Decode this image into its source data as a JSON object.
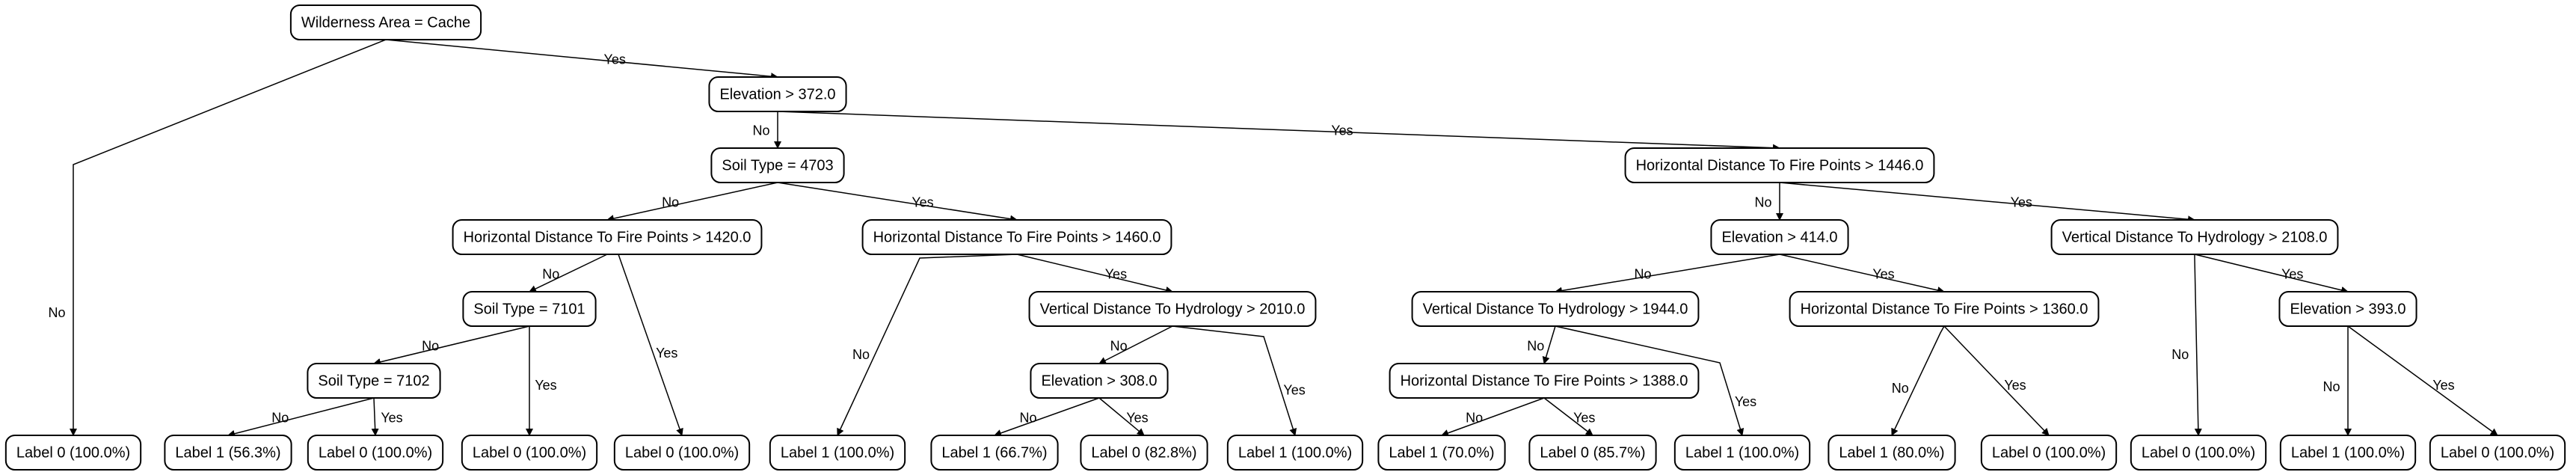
{
  "tree": {
    "nodes": [
      {
        "id": "n0",
        "label": "Wilderness Area = Cache",
        "kind": "decision"
      },
      {
        "id": "n1",
        "label": "Elevation > 372.0",
        "kind": "decision"
      },
      {
        "id": "n2",
        "label": "Soil Type = 4703",
        "kind": "decision"
      },
      {
        "id": "n3",
        "label": "Horizontal Distance To Fire Points > 1446.0",
        "kind": "decision"
      },
      {
        "id": "n4",
        "label": "Horizontal Distance To Fire Points > 1420.0",
        "kind": "decision"
      },
      {
        "id": "n5",
        "label": "Horizontal Distance To Fire Points > 1460.0",
        "kind": "decision"
      },
      {
        "id": "n6",
        "label": "Elevation > 414.0",
        "kind": "decision"
      },
      {
        "id": "n7",
        "label": "Vertical Distance To Hydrology > 2108.0",
        "kind": "decision"
      },
      {
        "id": "n8",
        "label": "Soil Type = 7101",
        "kind": "decision"
      },
      {
        "id": "n9",
        "label": "Vertical Distance To Hydrology > 2010.0",
        "kind": "decision"
      },
      {
        "id": "n10",
        "label": "Vertical Distance To Hydrology > 1944.0",
        "kind": "decision"
      },
      {
        "id": "n11",
        "label": "Horizontal Distance To Fire Points > 1360.0",
        "kind": "decision"
      },
      {
        "id": "n12",
        "label": "Elevation > 393.0",
        "kind": "decision"
      },
      {
        "id": "n13",
        "label": "Soil Type = 7102",
        "kind": "decision"
      },
      {
        "id": "n14",
        "label": "Elevation > 308.0",
        "kind": "decision"
      },
      {
        "id": "n15",
        "label": "Horizontal Distance To Fire Points > 1388.0",
        "kind": "decision"
      },
      {
        "id": "l0",
        "label": "Label 0 (100.0%)",
        "kind": "leaf"
      },
      {
        "id": "l1",
        "label": "Label 1 (56.3%)",
        "kind": "leaf"
      },
      {
        "id": "l2",
        "label": "Label 0 (100.0%)",
        "kind": "leaf"
      },
      {
        "id": "l3",
        "label": "Label 0 (100.0%)",
        "kind": "leaf"
      },
      {
        "id": "l4",
        "label": "Label 0 (100.0%)",
        "kind": "leaf"
      },
      {
        "id": "l5",
        "label": "Label 1 (100.0%)",
        "kind": "leaf"
      },
      {
        "id": "l6",
        "label": "Label 1 (66.7%)",
        "kind": "leaf"
      },
      {
        "id": "l7",
        "label": "Label 0 (82.8%)",
        "kind": "leaf"
      },
      {
        "id": "l8",
        "label": "Label 1 (100.0%)",
        "kind": "leaf"
      },
      {
        "id": "l9",
        "label": "Label 1 (70.0%)",
        "kind": "leaf"
      },
      {
        "id": "l10",
        "label": "Label 0 (85.7%)",
        "kind": "leaf"
      },
      {
        "id": "l11",
        "label": "Label 1 (100.0%)",
        "kind": "leaf"
      },
      {
        "id": "l12",
        "label": "Label 1 (80.0%)",
        "kind": "leaf"
      },
      {
        "id": "l13",
        "label": "Label 0 (100.0%)",
        "kind": "leaf"
      },
      {
        "id": "l14",
        "label": "Label 0 (100.0%)",
        "kind": "leaf"
      },
      {
        "id": "l15",
        "label": "Label 1 (100.0%)",
        "kind": "leaf"
      },
      {
        "id": "l16",
        "label": "Label 0 (100.0%)",
        "kind": "leaf"
      }
    ],
    "edges": [
      {
        "from": "n0",
        "to": "l0",
        "label": "No"
      },
      {
        "from": "n0",
        "to": "n1",
        "label": "Yes"
      },
      {
        "from": "n1",
        "to": "n2",
        "label": "No"
      },
      {
        "from": "n1",
        "to": "n3",
        "label": "Yes"
      },
      {
        "from": "n2",
        "to": "n4",
        "label": "No"
      },
      {
        "from": "n2",
        "to": "n5",
        "label": "Yes"
      },
      {
        "from": "n4",
        "to": "n8",
        "label": "No"
      },
      {
        "from": "n4",
        "to": "l4",
        "label": "Yes"
      },
      {
        "from": "n8",
        "to": "n13",
        "label": "No"
      },
      {
        "from": "n8",
        "to": "l3",
        "label": "Yes"
      },
      {
        "from": "n13",
        "to": "l1",
        "label": "No"
      },
      {
        "from": "n13",
        "to": "l2",
        "label": "Yes"
      },
      {
        "from": "n5",
        "to": "l5",
        "label": "No"
      },
      {
        "from": "n5",
        "to": "n9",
        "label": "Yes"
      },
      {
        "from": "n9",
        "to": "n14",
        "label": "No"
      },
      {
        "from": "n9",
        "to": "l8",
        "label": "Yes"
      },
      {
        "from": "n14",
        "to": "l6",
        "label": "No"
      },
      {
        "from": "n14",
        "to": "l7",
        "label": "Yes"
      },
      {
        "from": "n3",
        "to": "n6",
        "label": "No"
      },
      {
        "from": "n3",
        "to": "n7",
        "label": "Yes"
      },
      {
        "from": "n6",
        "to": "n10",
        "label": "No"
      },
      {
        "from": "n6",
        "to": "n11",
        "label": "Yes"
      },
      {
        "from": "n10",
        "to": "n15",
        "label": "No"
      },
      {
        "from": "n10",
        "to": "l11",
        "label": "Yes"
      },
      {
        "from": "n15",
        "to": "l9",
        "label": "No"
      },
      {
        "from": "n15",
        "to": "l10",
        "label": "Yes"
      },
      {
        "from": "n11",
        "to": "l12",
        "label": "No"
      },
      {
        "from": "n11",
        "to": "l13",
        "label": "Yes"
      },
      {
        "from": "n7",
        "to": "l14",
        "label": "No"
      },
      {
        "from": "n7",
        "to": "n12",
        "label": "Yes"
      },
      {
        "from": "n12",
        "to": "l15",
        "label": "No"
      },
      {
        "from": "n12",
        "to": "l16",
        "label": "Yes"
      }
    ]
  }
}
